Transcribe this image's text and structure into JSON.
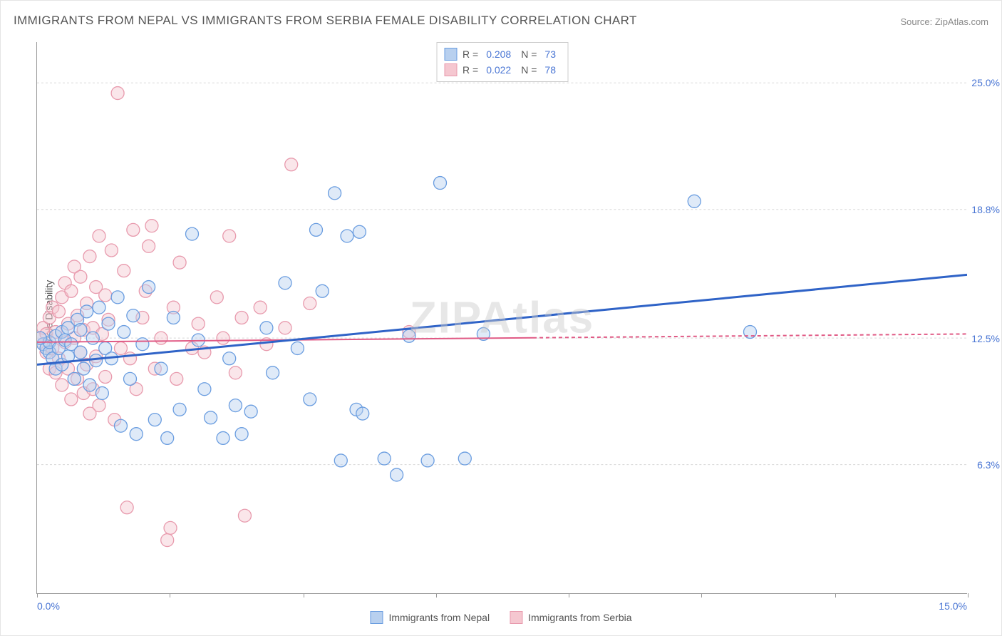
{
  "title": "IMMIGRANTS FROM NEPAL VS IMMIGRANTS FROM SERBIA FEMALE DISABILITY CORRELATION CHART",
  "source": "Source: ZipAtlas.com",
  "watermark": "ZIPAtlas",
  "ylabel": "Female Disability",
  "chart": {
    "type": "scatter",
    "xlim": [
      0.0,
      15.0
    ],
    "ylim": [
      0.0,
      27.0
    ],
    "xtick_label_left": "0.0%",
    "xtick_label_right": "15.0%",
    "xtick_marks": [
      0,
      2.14,
      4.29,
      6.43,
      8.57,
      10.71,
      12.86,
      15.0
    ],
    "yticks": [
      {
        "value": 6.3,
        "label": "6.3%"
      },
      {
        "value": 12.5,
        "label": "12.5%"
      },
      {
        "value": 18.8,
        "label": "18.8%"
      },
      {
        "value": 25.0,
        "label": "25.0%"
      }
    ],
    "grid_color": "#d8d8d8",
    "background_color": "#ffffff",
    "marker_radius": 9,
    "marker_opacity": 0.45,
    "series": [
      {
        "name": "Immigrants from Nepal",
        "color_fill": "#b8d0ef",
        "color_stroke": "#6a9de0",
        "r": "0.208",
        "n": "73",
        "trend": {
          "x1": 0.0,
          "y1": 11.2,
          "x2": 15.0,
          "y2": 15.6,
          "color": "#2f63c7",
          "width": 3
        },
        "points": [
          [
            0.1,
            12.2
          ],
          [
            0.15,
            12.0
          ],
          [
            0.2,
            11.8
          ],
          [
            0.2,
            12.3
          ],
          [
            0.25,
            11.5
          ],
          [
            0.3,
            12.6
          ],
          [
            0.3,
            11.0
          ],
          [
            0.35,
            12.0
          ],
          [
            0.4,
            12.8
          ],
          [
            0.4,
            11.2
          ],
          [
            0.45,
            12.4
          ],
          [
            0.5,
            13.0
          ],
          [
            0.5,
            11.6
          ],
          [
            0.55,
            12.2
          ],
          [
            0.6,
            10.5
          ],
          [
            0.65,
            13.4
          ],
          [
            0.7,
            11.8
          ],
          [
            0.7,
            12.9
          ],
          [
            0.75,
            11.0
          ],
          [
            0.8,
            13.8
          ],
          [
            0.85,
            10.2
          ],
          [
            0.9,
            12.5
          ],
          [
            0.95,
            11.4
          ],
          [
            1.0,
            14.0
          ],
          [
            1.05,
            9.8
          ],
          [
            1.1,
            12.0
          ],
          [
            1.15,
            13.2
          ],
          [
            1.2,
            11.5
          ],
          [
            1.3,
            14.5
          ],
          [
            1.35,
            8.2
          ],
          [
            1.4,
            12.8
          ],
          [
            1.5,
            10.5
          ],
          [
            1.55,
            13.6
          ],
          [
            1.6,
            7.8
          ],
          [
            1.7,
            12.2
          ],
          [
            1.8,
            15.0
          ],
          [
            1.9,
            8.5
          ],
          [
            2.0,
            11.0
          ],
          [
            2.1,
            7.6
          ],
          [
            2.2,
            13.5
          ],
          [
            2.3,
            9.0
          ],
          [
            2.5,
            17.6
          ],
          [
            2.6,
            12.4
          ],
          [
            2.7,
            10.0
          ],
          [
            2.8,
            8.6
          ],
          [
            3.0,
            7.6
          ],
          [
            3.1,
            11.5
          ],
          [
            3.2,
            9.2
          ],
          [
            3.3,
            7.8
          ],
          [
            3.45,
            8.9
          ],
          [
            3.7,
            13.0
          ],
          [
            3.8,
            10.8
          ],
          [
            4.0,
            15.2
          ],
          [
            4.2,
            12.0
          ],
          [
            4.4,
            9.5
          ],
          [
            4.5,
            17.8
          ],
          [
            4.6,
            14.8
          ],
          [
            4.8,
            19.6
          ],
          [
            4.9,
            6.5
          ],
          [
            5.0,
            17.5
          ],
          [
            5.15,
            9.0
          ],
          [
            5.2,
            17.7
          ],
          [
            5.25,
            8.8
          ],
          [
            5.6,
            6.6
          ],
          [
            5.8,
            5.8
          ],
          [
            6.0,
            12.6
          ],
          [
            6.3,
            6.5
          ],
          [
            6.5,
            20.1
          ],
          [
            6.9,
            6.6
          ],
          [
            7.2,
            12.7
          ],
          [
            10.6,
            19.2
          ],
          [
            11.5,
            12.8
          ],
          [
            0.05,
            12.5
          ]
        ]
      },
      {
        "name": "Immigrants from Serbia",
        "color_fill": "#f5c7d0",
        "color_stroke": "#e89aad",
        "r": "0.022",
        "n": "78",
        "trend": {
          "x1": 0.0,
          "y1": 12.3,
          "x2": 15.0,
          "y2": 12.7,
          "color": "#e05a85",
          "width": 2
        },
        "trend_dashed_from": 8.0,
        "points": [
          [
            0.05,
            12.5
          ],
          [
            0.1,
            12.2
          ],
          [
            0.1,
            13.0
          ],
          [
            0.15,
            11.8
          ],
          [
            0.15,
            12.7
          ],
          [
            0.2,
            13.5
          ],
          [
            0.2,
            11.0
          ],
          [
            0.25,
            12.0
          ],
          [
            0.25,
            14.0
          ],
          [
            0.3,
            10.8
          ],
          [
            0.3,
            12.8
          ],
          [
            0.35,
            13.8
          ],
          [
            0.35,
            11.5
          ],
          [
            0.4,
            14.5
          ],
          [
            0.4,
            10.2
          ],
          [
            0.45,
            12.3
          ],
          [
            0.45,
            15.2
          ],
          [
            0.5,
            11.0
          ],
          [
            0.5,
            13.2
          ],
          [
            0.55,
            9.5
          ],
          [
            0.55,
            14.8
          ],
          [
            0.6,
            12.5
          ],
          [
            0.6,
            16.0
          ],
          [
            0.65,
            10.5
          ],
          [
            0.65,
            13.6
          ],
          [
            0.7,
            11.8
          ],
          [
            0.7,
            15.5
          ],
          [
            0.75,
            9.8
          ],
          [
            0.75,
            12.9
          ],
          [
            0.8,
            14.2
          ],
          [
            0.8,
            11.2
          ],
          [
            0.85,
            16.5
          ],
          [
            0.85,
            8.8
          ],
          [
            0.9,
            13.0
          ],
          [
            0.9,
            10.0
          ],
          [
            0.95,
            15.0
          ],
          [
            0.95,
            11.6
          ],
          [
            1.0,
            17.5
          ],
          [
            1.0,
            9.2
          ],
          [
            1.05,
            12.7
          ],
          [
            1.1,
            14.6
          ],
          [
            1.1,
            10.6
          ],
          [
            1.15,
            13.4
          ],
          [
            1.2,
            16.8
          ],
          [
            1.25,
            8.5
          ],
          [
            1.3,
            24.5
          ],
          [
            1.35,
            12.0
          ],
          [
            1.4,
            15.8
          ],
          [
            1.45,
            4.2
          ],
          [
            1.5,
            11.5
          ],
          [
            1.55,
            17.8
          ],
          [
            1.6,
            10.0
          ],
          [
            1.7,
            13.5
          ],
          [
            1.75,
            14.8
          ],
          [
            1.8,
            17.0
          ],
          [
            1.85,
            18.0
          ],
          [
            1.9,
            11.0
          ],
          [
            2.0,
            12.5
          ],
          [
            2.1,
            2.6
          ],
          [
            2.15,
            3.2
          ],
          [
            2.2,
            14.0
          ],
          [
            2.25,
            10.5
          ],
          [
            2.3,
            16.2
          ],
          [
            2.5,
            12.0
          ],
          [
            2.6,
            13.2
          ],
          [
            2.7,
            11.8
          ],
          [
            2.9,
            14.5
          ],
          [
            3.0,
            12.5
          ],
          [
            3.1,
            17.5
          ],
          [
            3.2,
            10.8
          ],
          [
            3.3,
            13.5
          ],
          [
            3.35,
            3.8
          ],
          [
            3.6,
            14.0
          ],
          [
            3.7,
            12.2
          ],
          [
            4.0,
            13.0
          ],
          [
            4.1,
            21.0
          ],
          [
            4.4,
            14.2
          ],
          [
            6.0,
            12.8
          ]
        ]
      }
    ]
  },
  "legend_top_labels": {
    "R": "R =",
    "N": "N ="
  },
  "legend_bottom": [
    {
      "label": "Immigrants from Nepal",
      "fill": "#b8d0ef",
      "stroke": "#6a9de0"
    },
    {
      "label": "Immigrants from Serbia",
      "fill": "#f5c7d0",
      "stroke": "#e89aad"
    }
  ]
}
